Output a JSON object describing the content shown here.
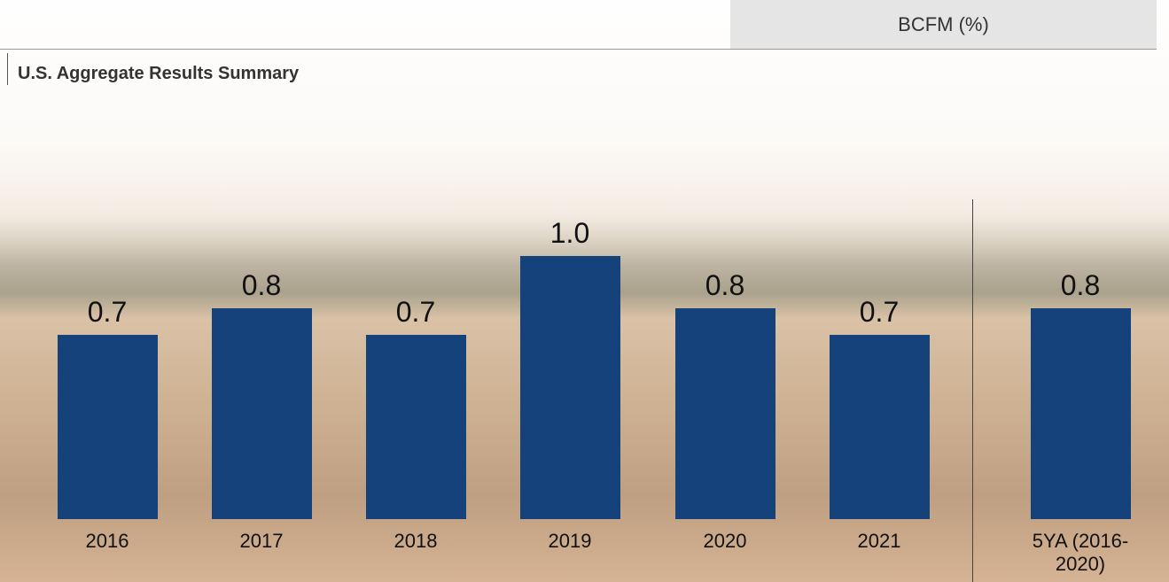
{
  "header": {
    "metric": "BCFM (%)",
    "title": "U.S. Aggregate Results Summary"
  },
  "chart_data": {
    "type": "bar",
    "categories": [
      "2016",
      "2017",
      "2018",
      "2019",
      "2020",
      "2021",
      "5YA (2016-2020)"
    ],
    "values": [
      0.7,
      0.8,
      0.7,
      1.0,
      0.8,
      0.7,
      0.8
    ],
    "value_labels": [
      "0.7",
      "0.8",
      "0.7",
      "1.0",
      "0.8",
      "0.7",
      "0.8"
    ],
    "color": "#15427a"
  }
}
